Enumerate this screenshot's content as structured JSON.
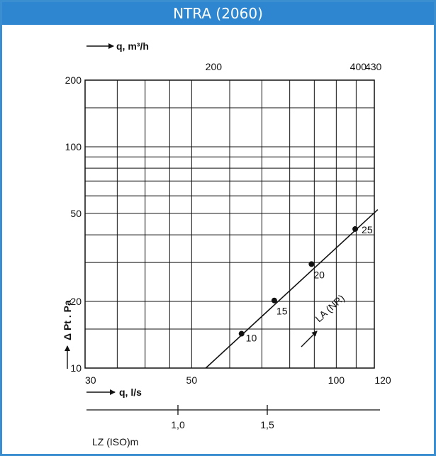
{
  "header": {
    "title": "NTRA (2060)"
  },
  "colors": {
    "header_bg": "#2d86cf",
    "border": "#3b8fd0",
    "ink": "#111111"
  },
  "chart_data": {
    "type": "line",
    "title": "NTRA (2060)",
    "x_scale": "log",
    "y_scale": "log",
    "xlim": [
      30,
      120
    ],
    "ylim": [
      10,
      200
    ],
    "grid": true,
    "xlabel": "q, l/s",
    "ylabel": "Δ Pt . Pa",
    "top_axis_label": "q, m³/h",
    "bottom_axis_label": "LZ (ISO)m",
    "x_ticks": [
      "30",
      "50",
      "100",
      "120"
    ],
    "y_ticks": [
      "10",
      "20",
      "50",
      "100",
      "200"
    ],
    "top_ticks": [
      "200",
      "400",
      "430"
    ],
    "lz_ticks": [
      "1,0",
      "1,5"
    ],
    "series": [
      {
        "name": "LA (NR)",
        "x": [
          53.5,
          122
        ],
        "y": [
          10,
          52
        ]
      }
    ],
    "labeled_points": [
      {
        "label": "10",
        "x": 63.5,
        "y": 14.3
      },
      {
        "label": "15",
        "x": 74.3,
        "y": 20.2
      },
      {
        "label": "20",
        "x": 88.8,
        "y": 29.5
      },
      {
        "label": "25",
        "x": 109.5,
        "y": 42.5
      }
    ]
  }
}
